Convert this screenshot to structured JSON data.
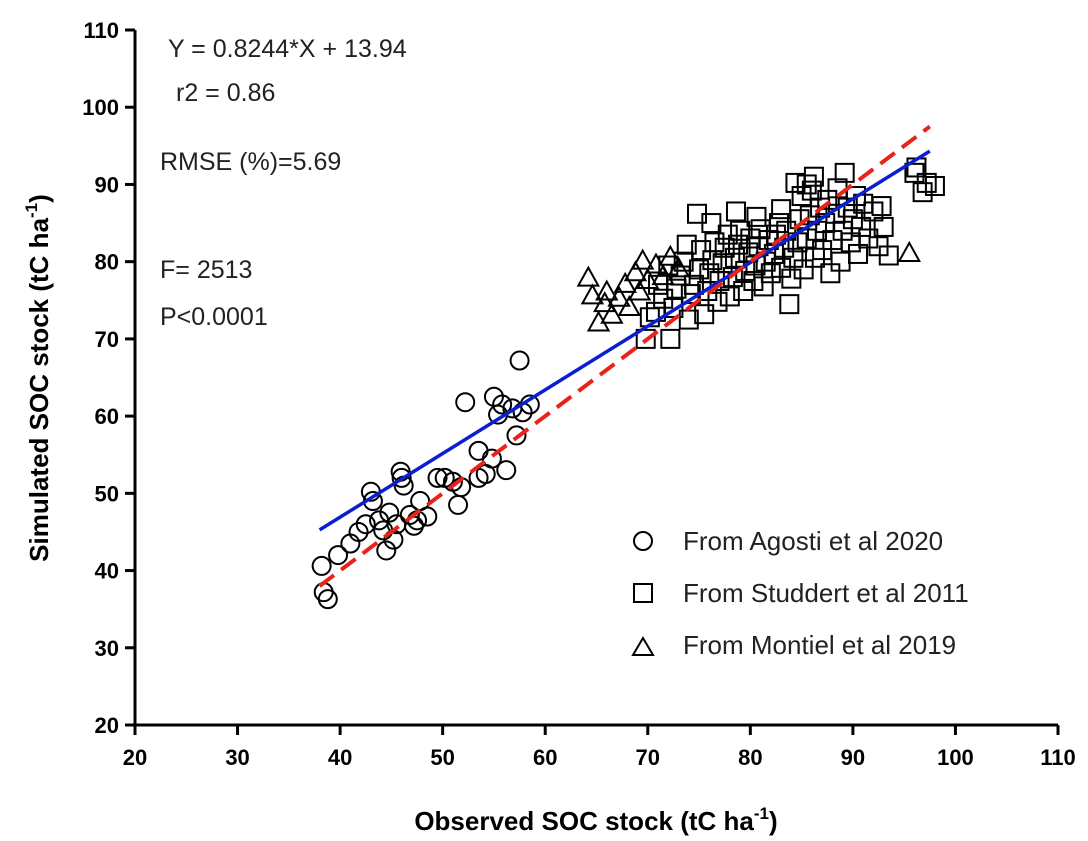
{
  "chart_data": {
    "type": "scatter",
    "xlabel": "Observed SOC stock (tC ha",
    "xlabel_sup": "-1",
    "xlabel_end": ")",
    "ylabel": "Simulated SOC stock (tC ha",
    "ylabel_sup": "-1",
    "ylabel_end": ")",
    "xlim": [
      20,
      110
    ],
    "ylim": [
      20,
      110
    ],
    "x_ticks": [
      20,
      30,
      40,
      50,
      60,
      70,
      80,
      90,
      100,
      110
    ],
    "y_ticks": [
      20,
      30,
      40,
      50,
      60,
      70,
      80,
      90,
      100,
      110
    ],
    "grid": false,
    "annotations": {
      "equation": "Y = 0.8244*X + 13.94",
      "r2": "r2 = 0.86",
      "rmse": "RMSE (%)=5.69",
      "f": "F= 2513",
      "p": "P<0.0001"
    },
    "legend_placement": "bottom-right",
    "series": [
      {
        "name": "From Agosti et al 2020",
        "marker": "circle",
        "points": [
          [
            38.2,
            40.6
          ],
          [
            38.4,
            37.2
          ],
          [
            38.8,
            36.3
          ],
          [
            39.8,
            42.0
          ],
          [
            41.0,
            43.5
          ],
          [
            41.8,
            45.0
          ],
          [
            42.5,
            46.0
          ],
          [
            43.0,
            50.2
          ],
          [
            43.2,
            49.0
          ],
          [
            43.8,
            46.5
          ],
          [
            44.2,
            45.2
          ],
          [
            44.5,
            42.6
          ],
          [
            44.8,
            47.5
          ],
          [
            45.2,
            44.0
          ],
          [
            45.5,
            46.0
          ],
          [
            45.9,
            52.8
          ],
          [
            46.0,
            52.0
          ],
          [
            46.2,
            51.0
          ],
          [
            47.2,
            45.8
          ],
          [
            47.5,
            46.5
          ],
          [
            47.8,
            49.0
          ],
          [
            48.5,
            47.0
          ],
          [
            49.5,
            52.0
          ],
          [
            50.2,
            52.0
          ],
          [
            51.0,
            51.5
          ],
          [
            51.5,
            48.5
          ],
          [
            51.8,
            50.8
          ],
          [
            52.2,
            61.8
          ],
          [
            53.5,
            55.5
          ],
          [
            53.5,
            52.0
          ],
          [
            54.2,
            52.5
          ],
          [
            55.0,
            62.5
          ],
          [
            55.4,
            60.2
          ],
          [
            55.8,
            61.5
          ],
          [
            56.2,
            53.0
          ],
          [
            56.8,
            61.0
          ],
          [
            57.2,
            57.5
          ],
          [
            57.5,
            67.2
          ],
          [
            57.8,
            60.5
          ],
          [
            58.5,
            61.5
          ],
          [
            54.8,
            54.5
          ],
          [
            46.8,
            47.2
          ]
        ]
      },
      {
        "name": "From Studdert et al 2011",
        "marker": "square",
        "points": [
          [
            69.8,
            70.0
          ],
          [
            70.2,
            72.8
          ],
          [
            70.8,
            73.5
          ],
          [
            71.5,
            75.2
          ],
          [
            72.2,
            70.0
          ],
          [
            72.5,
            74.0
          ],
          [
            72.8,
            76.5
          ],
          [
            73.2,
            78.2
          ],
          [
            73.5,
            80.0
          ],
          [
            74.0,
            72.5
          ],
          [
            74.2,
            75.8
          ],
          [
            74.5,
            77.0
          ],
          [
            74.8,
            86.2
          ],
          [
            75.0,
            79.0
          ],
          [
            75.2,
            81.5
          ],
          [
            75.5,
            73.2
          ],
          [
            75.8,
            76.2
          ],
          [
            76.0,
            78.5
          ],
          [
            76.3,
            80.2
          ],
          [
            76.5,
            82.5
          ],
          [
            76.8,
            74.8
          ],
          [
            77.0,
            77.5
          ],
          [
            77.3,
            79.8
          ],
          [
            77.5,
            81.8
          ],
          [
            77.8,
            83.5
          ],
          [
            78.0,
            75.5
          ],
          [
            78.3,
            78.0
          ],
          [
            78.5,
            80.5
          ],
          [
            78.8,
            82.2
          ],
          [
            79.0,
            84.0
          ],
          [
            79.3,
            76.2
          ],
          [
            79.5,
            78.8
          ],
          [
            79.8,
            81.2
          ],
          [
            80.0,
            83.0
          ],
          [
            80.3,
            77.5
          ],
          [
            80.5,
            79.5
          ],
          [
            80.8,
            82.0
          ],
          [
            81.0,
            84.2
          ],
          [
            81.3,
            76.8
          ],
          [
            81.5,
            80.0
          ],
          [
            81.8,
            82.8
          ],
          [
            82.0,
            78.5
          ],
          [
            82.3,
            81.0
          ],
          [
            82.5,
            83.5
          ],
          [
            82.8,
            85.0
          ],
          [
            83.0,
            79.2
          ],
          [
            83.3,
            81.8
          ],
          [
            83.5,
            84.0
          ],
          [
            83.8,
            74.5
          ],
          [
            84.0,
            77.8
          ],
          [
            84.2,
            80.5
          ],
          [
            84.4,
            90.2
          ],
          [
            84.6,
            82.5
          ],
          [
            84.8,
            85.5
          ],
          [
            85.0,
            88.5
          ],
          [
            85.2,
            79.0
          ],
          [
            85.5,
            83.0
          ],
          [
            85.8,
            86.0
          ],
          [
            86.0,
            89.2
          ],
          [
            86.3,
            80.5
          ],
          [
            86.5,
            84.0
          ],
          [
            86.8,
            87.0
          ],
          [
            87.0,
            81.5
          ],
          [
            87.3,
            85.0
          ],
          [
            87.5,
            88.0
          ],
          [
            87.8,
            78.5
          ],
          [
            88.0,
            82.8
          ],
          [
            88.3,
            86.2
          ],
          [
            88.5,
            89.5
          ],
          [
            88.8,
            80.0
          ],
          [
            89.0,
            84.0
          ],
          [
            89.2,
            91.5
          ],
          [
            89.5,
            87.0
          ],
          [
            89.8,
            82.5
          ],
          [
            90.0,
            85.5
          ],
          [
            90.3,
            88.5
          ],
          [
            90.5,
            81.0
          ],
          [
            90.8,
            84.5
          ],
          [
            91.0,
            87.5
          ],
          [
            91.5,
            83.0
          ],
          [
            92.0,
            86.5
          ],
          [
            92.5,
            82.0
          ],
          [
            93.0,
            84.5
          ],
          [
            93.5,
            80.8
          ],
          [
            92.8,
            87.2
          ],
          [
            96.0,
            91.5
          ],
          [
            96.2,
            92.2
          ],
          [
            96.8,
            89.0
          ],
          [
            97.2,
            90.2
          ],
          [
            98.0,
            89.8
          ],
          [
            73.8,
            82.2
          ],
          [
            72.0,
            79.5
          ],
          [
            71.0,
            77.0
          ],
          [
            76.2,
            85.0
          ],
          [
            78.6,
            86.5
          ],
          [
            80.6,
            85.8
          ],
          [
            83.0,
            86.8
          ],
          [
            85.5,
            90.0
          ],
          [
            86.2,
            91.0
          ]
        ]
      },
      {
        "name": "From Montiel et al 2019",
        "marker": "triangle",
        "points": [
          [
            64.2,
            77.8
          ],
          [
            64.6,
            75.5
          ],
          [
            65.2,
            72.0
          ],
          [
            65.8,
            74.5
          ],
          [
            66.5,
            73.0
          ],
          [
            67.2,
            75.2
          ],
          [
            67.8,
            77.0
          ],
          [
            68.2,
            74.0
          ],
          [
            68.8,
            78.5
          ],
          [
            69.2,
            76.0
          ],
          [
            70.0,
            77.5
          ],
          [
            70.8,
            79.5
          ],
          [
            71.5,
            78.0
          ],
          [
            72.2,
            80.5
          ],
          [
            73.0,
            79.0
          ],
          [
            95.5,
            81.0
          ],
          [
            66.0,
            76.0
          ],
          [
            69.5,
            80.0
          ]
        ]
      }
    ],
    "lines": [
      {
        "kind": "fit",
        "color": "#0b1fd0",
        "style": "solid",
        "slope": 0.8244,
        "intercept": 13.94,
        "x_range": [
          38.0,
          97.5
        ]
      },
      {
        "kind": "one-to-one",
        "color": "#e8231a",
        "style": "dashed",
        "slope": 1.0,
        "intercept": 0.0,
        "x_range": [
          38.0,
          97.5
        ]
      }
    ],
    "colors": {
      "fit": "#0b1fd0",
      "one_to_one": "#e8231a",
      "markers": "#000000"
    }
  }
}
